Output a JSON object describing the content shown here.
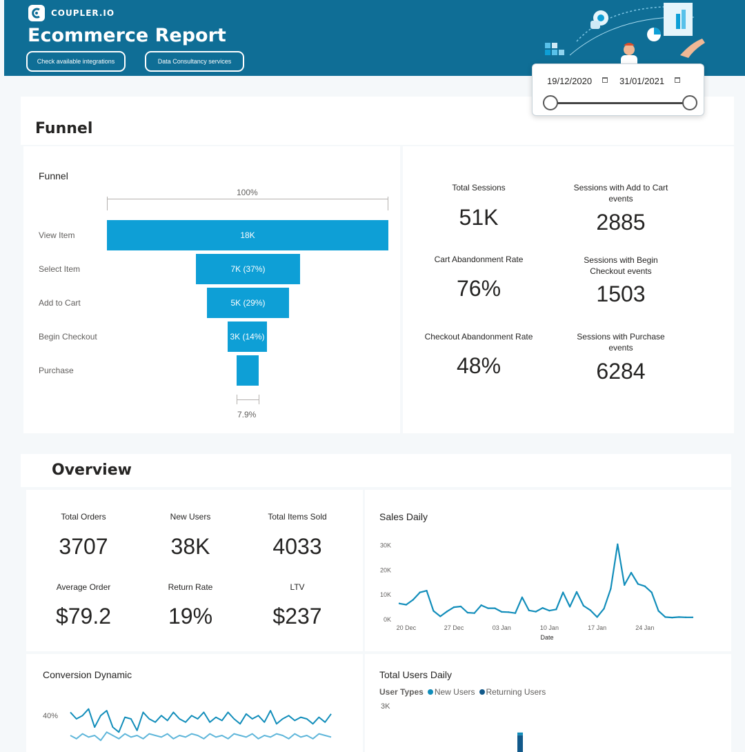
{
  "header": {
    "logo_text": "COUPLER.IO",
    "title": "Ecommerce Report",
    "buttons": [
      "Check available integrations",
      "Data Consultancy services"
    ]
  },
  "date_range": {
    "start": "19/12/2020",
    "end": "31/01/2021"
  },
  "funnel_section": {
    "title": "Funnel",
    "visual_title": "Funnel",
    "top_pct": "100%",
    "bottom_pct": "7.9%",
    "stages": [
      {
        "name": "View Item",
        "label": "18K",
        "fraction": 1.0
      },
      {
        "name": "Select Item",
        "label": "7K (37%)",
        "fraction": 0.37
      },
      {
        "name": "Add to Cart",
        "label": "5K (29%)",
        "fraction": 0.29
      },
      {
        "name": "Begin Checkout",
        "label": "3K (14%)",
        "fraction": 0.14
      },
      {
        "name": "Purchase",
        "label": "",
        "fraction": 0.079
      }
    ],
    "kpis": [
      {
        "label": "Total Sessions",
        "value": "51K"
      },
      {
        "label": "Sessions with Add to Cart events",
        "value": "2885"
      },
      {
        "label": "Cart Abandonment Rate",
        "value": "76%"
      },
      {
        "label": "Sessions with Begin Checkout events",
        "value": "1503"
      },
      {
        "label": "Checkout Abandonment Rate",
        "value": "48%"
      },
      {
        "label": "Sessions with Purchase events",
        "value": "6284"
      }
    ]
  },
  "overview": {
    "title": "Overview",
    "kpis": [
      {
        "label": "Total Orders",
        "value": "3707"
      },
      {
        "label": "New Users",
        "value": "38K"
      },
      {
        "label": "Total Items Sold",
        "value": "4033"
      },
      {
        "label": "Average Order",
        "value": "$79.2"
      },
      {
        "label": "Return Rate",
        "value": "19%"
      },
      {
        "label": "LTV",
        "value": "$237"
      }
    ],
    "sales_daily_title": "Sales Daily",
    "conversion_title": "Conversion Dynamic",
    "conversion_tick": "40%",
    "users_title": "Total Users Daily",
    "users_legend_title": "User Types",
    "users_legend": [
      "New Users",
      "Returning Users"
    ],
    "users_tick": "3K"
  },
  "colors": {
    "header": "#0f6e96",
    "bar": "#0e9fd6",
    "line": "#118dba",
    "returning": "#12598a"
  },
  "chart_data": [
    {
      "type": "line",
      "title": "Sales Daily",
      "xlabel": "Date",
      "ylabel": "",
      "x_ticks": [
        "20 Dec",
        "27 Dec",
        "03 Jan",
        "10 Jan",
        "17 Jan",
        "24 Jan"
      ],
      "y_ticks": [
        "0K",
        "10K",
        "20K",
        "30K"
      ],
      "ylim": [
        0,
        33000
      ],
      "x": [
        "2020-12-19",
        "2020-12-20",
        "2020-12-21",
        "2020-12-22",
        "2020-12-23",
        "2020-12-24",
        "2020-12-25",
        "2020-12-26",
        "2020-12-27",
        "2020-12-28",
        "2020-12-29",
        "2020-12-30",
        "2020-12-31",
        "2021-01-01",
        "2021-01-02",
        "2021-01-03",
        "2021-01-04",
        "2021-01-05",
        "2021-01-06",
        "2021-01-07",
        "2021-01-08",
        "2021-01-09",
        "2021-01-10",
        "2021-01-11",
        "2021-01-12",
        "2021-01-13",
        "2021-01-14",
        "2021-01-15",
        "2021-01-16",
        "2021-01-17",
        "2021-01-18",
        "2021-01-19",
        "2021-01-20",
        "2021-01-21",
        "2021-01-22",
        "2021-01-23",
        "2021-01-24",
        "2021-01-25",
        "2021-01-26",
        "2021-01-27",
        "2021-01-28",
        "2021-01-29",
        "2021-01-30",
        "2021-01-31"
      ],
      "values": [
        6500,
        6000,
        8000,
        11000,
        11700,
        3500,
        1300,
        3300,
        5000,
        5300,
        2800,
        2600,
        5800,
        4600,
        4600,
        3100,
        3000,
        2600,
        9000,
        3700,
        3200,
        4700,
        3600,
        4100,
        11000,
        5200,
        11200,
        5600,
        3800,
        1000,
        4400,
        12500,
        30500,
        14000,
        19000,
        14400,
        13500,
        11000,
        3500,
        1000,
        800,
        1000,
        900,
        900
      ]
    },
    {
      "type": "line",
      "title": "Conversion Dynamic",
      "y_ticks": [
        "40%"
      ],
      "series": [
        {
          "values": [
            44,
            40,
            42,
            46,
            35,
            42,
            45,
            35,
            32,
            41,
            40,
            33,
            44,
            40,
            38,
            42,
            39,
            44,
            40,
            38,
            42,
            40,
            44,
            38,
            41,
            39,
            44,
            40,
            37,
            43,
            40,
            42,
            38,
            45,
            37,
            40,
            42,
            39,
            41,
            40,
            37,
            41,
            38,
            43
          ]
        },
        {
          "values": [
            30,
            28,
            31,
            29,
            30,
            27,
            32,
            30,
            28,
            31,
            29,
            30,
            28,
            31,
            30,
            29,
            31,
            28,
            30,
            29,
            31,
            30,
            28,
            31,
            29,
            30,
            28,
            31,
            30,
            29,
            31,
            28,
            30,
            29,
            31,
            30,
            28,
            31,
            29,
            30,
            28,
            31,
            30,
            29
          ]
        }
      ]
    },
    {
      "type": "bar",
      "title": "Total Users Daily",
      "y_ticks": [
        "3K"
      ],
      "legend_title": "User Types",
      "series": [
        {
          "name": "New Users",
          "values": [
            2800
          ]
        },
        {
          "name": "Returning Users",
          "values": [
            2600
          ]
        }
      ]
    }
  ]
}
